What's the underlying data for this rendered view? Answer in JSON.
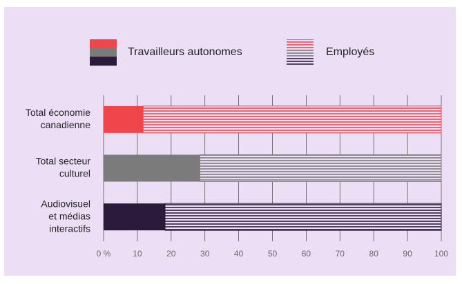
{
  "chart_data": {
    "type": "stacked-bar-horizontal",
    "categories": [
      [
        "Total économie",
        "canadienne"
      ],
      [
        "Total secteur",
        "culturel"
      ],
      [
        "Audiovisuel",
        "et médias",
        "interactifs"
      ]
    ],
    "series": [
      {
        "name": "Travailleurs autonomes",
        "colors": [
          "#f0454b",
          "#7b7b7b",
          "#2b1a3b"
        ],
        "pattern": "solid",
        "values": [
          11.7,
          28.5,
          18.2
        ]
      },
      {
        "name": "Employés",
        "colors": [
          "#f0454b",
          "#7b7b7b",
          "#2b1a3b"
        ],
        "pattern": "stripes",
        "values": [
          88.3,
          71.5,
          81.8
        ]
      }
    ],
    "xlim": [
      0,
      100
    ],
    "xticks": [
      {
        "value": 0,
        "label": "0 %"
      },
      10,
      20,
      30,
      40,
      50,
      60,
      70,
      80,
      90,
      100
    ],
    "grid": true
  }
}
